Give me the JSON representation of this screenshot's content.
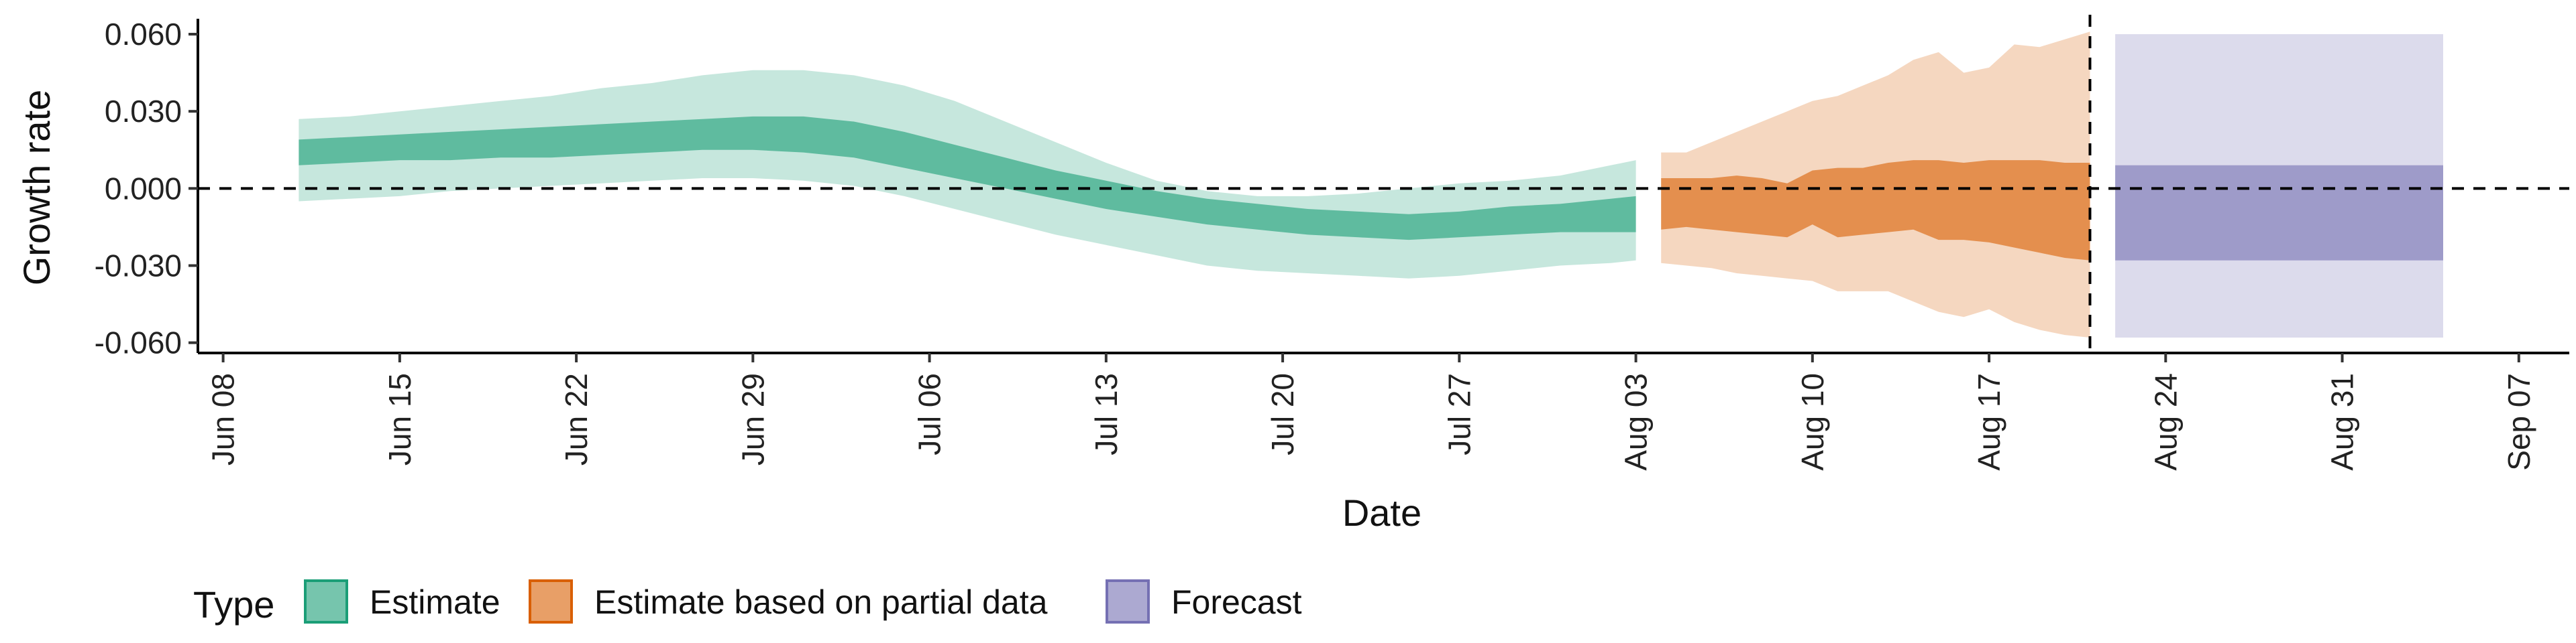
{
  "chart_data": {
    "type": "area",
    "xlabel": "Date",
    "ylabel": "Growth rate",
    "ylim": [
      -0.064,
      0.066
    ],
    "xlim": [
      "2020-06-07",
      "2020-09-09"
    ],
    "yticks": [
      -0.06,
      -0.03,
      0.0,
      0.03,
      0.06
    ],
    "ytick_labels": [
      "-0.060",
      "-0.030",
      "0.000",
      "0.030",
      "0.060"
    ],
    "xticks": [
      "2020-06-08",
      "2020-06-15",
      "2020-06-22",
      "2020-06-29",
      "2020-07-06",
      "2020-07-13",
      "2020-07-20",
      "2020-07-27",
      "2020-08-03",
      "2020-08-10",
      "2020-08-17",
      "2020-08-24",
      "2020-08-31",
      "2020-09-07"
    ],
    "xtick_labels": [
      "Jun 08",
      "Jun 15",
      "Jun 22",
      "Jun 29",
      "Jul 06",
      "Jul 13",
      "Jul 20",
      "Jul 27",
      "Aug 03",
      "Aug 10",
      "Aug 17",
      "Aug 24",
      "Aug 31",
      "Sep 07"
    ],
    "hline": 0.0,
    "vline": "2020-08-21",
    "legend": {
      "title": "Type",
      "position": "bottom-left",
      "items": [
        {
          "label": "Estimate",
          "color": "#1b9e77"
        },
        {
          "label": "Estimate based on partial data",
          "color": "#d95f02"
        },
        {
          "label": "Forecast",
          "color": "#7570b3"
        }
      ]
    },
    "series": [
      {
        "type_key": "Estimate",
        "color": "#1b9e77",
        "x": [
          "2020-06-11",
          "2020-06-13",
          "2020-06-15",
          "2020-06-17",
          "2020-06-19",
          "2020-06-21",
          "2020-06-23",
          "2020-06-25",
          "2020-06-27",
          "2020-06-29",
          "2020-07-01",
          "2020-07-03",
          "2020-07-05",
          "2020-07-07",
          "2020-07-09",
          "2020-07-11",
          "2020-07-13",
          "2020-07-15",
          "2020-07-17",
          "2020-07-19",
          "2020-07-21",
          "2020-07-23",
          "2020-07-25",
          "2020-07-27",
          "2020-07-29",
          "2020-07-31",
          "2020-08-02",
          "2020-08-03"
        ],
        "outer_upper": [
          0.027,
          0.028,
          0.03,
          0.032,
          0.034,
          0.036,
          0.039,
          0.041,
          0.044,
          0.046,
          0.046,
          0.044,
          0.04,
          0.034,
          0.026,
          0.018,
          0.01,
          0.003,
          -0.001,
          -0.003,
          -0.003,
          -0.002,
          0.0,
          0.002,
          0.003,
          0.005,
          0.009,
          0.011
        ],
        "inner_upper": [
          0.019,
          0.02,
          0.021,
          0.022,
          0.023,
          0.024,
          0.025,
          0.026,
          0.027,
          0.028,
          0.028,
          0.026,
          0.022,
          0.017,
          0.012,
          0.007,
          0.003,
          -0.001,
          -0.004,
          -0.006,
          -0.008,
          -0.009,
          -0.01,
          -0.009,
          -0.007,
          -0.006,
          -0.004,
          -0.003
        ],
        "inner_lower": [
          0.009,
          0.01,
          0.011,
          0.011,
          0.012,
          0.012,
          0.013,
          0.014,
          0.015,
          0.015,
          0.014,
          0.012,
          0.008,
          0.004,
          0.0,
          -0.004,
          -0.008,
          -0.011,
          -0.014,
          -0.016,
          -0.018,
          -0.019,
          -0.02,
          -0.019,
          -0.018,
          -0.017,
          -0.017,
          -0.017
        ],
        "outer_lower": [
          -0.005,
          -0.004,
          -0.003,
          -0.001,
          0.0,
          0.001,
          0.002,
          0.003,
          0.004,
          0.004,
          0.003,
          0.001,
          -0.003,
          -0.008,
          -0.013,
          -0.018,
          -0.022,
          -0.026,
          -0.03,
          -0.032,
          -0.033,
          -0.034,
          -0.035,
          -0.034,
          -0.032,
          -0.03,
          -0.029,
          -0.028
        ]
      },
      {
        "type_key": "Estimate based on partial data",
        "color": "#d95f02",
        "x": [
          "2020-08-04",
          "2020-08-05",
          "2020-08-06",
          "2020-08-07",
          "2020-08-08",
          "2020-08-09",
          "2020-08-10",
          "2020-08-11",
          "2020-08-12",
          "2020-08-13",
          "2020-08-14",
          "2020-08-15",
          "2020-08-16",
          "2020-08-17",
          "2020-08-18",
          "2020-08-19",
          "2020-08-20",
          "2020-08-21"
        ],
        "outer_upper": [
          0.014,
          0.014,
          0.018,
          0.022,
          0.026,
          0.03,
          0.034,
          0.036,
          0.04,
          0.044,
          0.05,
          0.053,
          0.045,
          0.047,
          0.056,
          0.055,
          0.058,
          0.061
        ],
        "inner_upper": [
          0.004,
          0.004,
          0.004,
          0.005,
          0.004,
          0.002,
          0.007,
          0.008,
          0.008,
          0.01,
          0.011,
          0.011,
          0.01,
          0.011,
          0.011,
          0.011,
          0.01,
          0.01
        ],
        "inner_lower": [
          -0.016,
          -0.015,
          -0.016,
          -0.017,
          -0.018,
          -0.019,
          -0.014,
          -0.019,
          -0.018,
          -0.017,
          -0.016,
          -0.02,
          -0.02,
          -0.021,
          -0.023,
          -0.025,
          -0.027,
          -0.028
        ],
        "outer_lower": [
          -0.029,
          -0.03,
          -0.031,
          -0.033,
          -0.034,
          -0.035,
          -0.036,
          -0.04,
          -0.04,
          -0.04,
          -0.044,
          -0.048,
          -0.05,
          -0.047,
          -0.052,
          -0.055,
          -0.057,
          -0.058
        ]
      },
      {
        "type_key": "Forecast",
        "color": "#7570b3",
        "x": [
          "2020-08-22",
          "2020-09-04"
        ],
        "outer_upper": [
          0.06,
          0.06
        ],
        "inner_upper": [
          0.009,
          0.009
        ],
        "inner_lower": [
          -0.028,
          -0.028
        ],
        "outer_lower": [
          -0.058,
          -0.058
        ]
      }
    ]
  }
}
